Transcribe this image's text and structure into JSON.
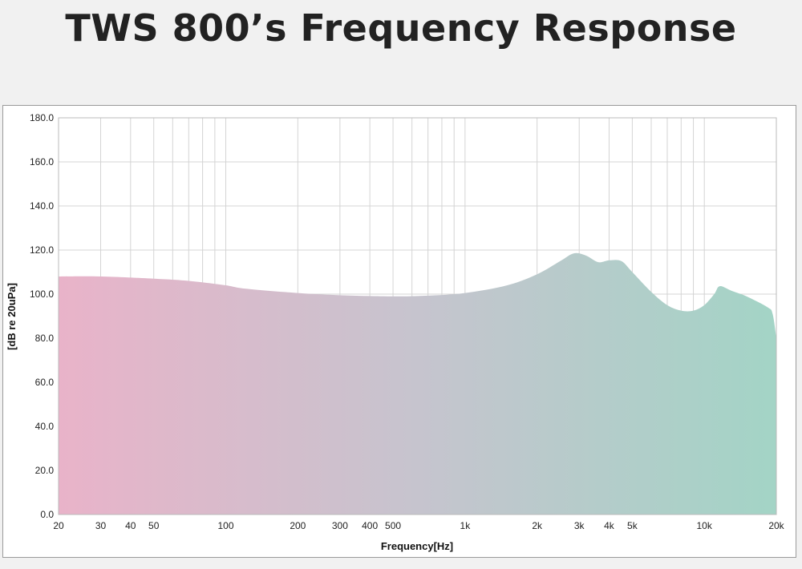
{
  "title": "TWS 800’s Frequency Response",
  "chart_data": {
    "type": "area",
    "title": "TWS 800’s Frequency Response",
    "xlabel": "Frequency[Hz]",
    "ylabel": "[dB re 20uPa]",
    "xscale": "log",
    "xlim": [
      20,
      20000
    ],
    "ylim": [
      0,
      180
    ],
    "grid": true,
    "yticks": [
      0,
      20,
      40,
      60,
      80,
      100,
      120,
      140,
      160,
      180
    ],
    "ytick_labels": [
      "0.0",
      "20.0",
      "40.0",
      "60.0",
      "80.0",
      "100.0",
      "120.0",
      "140.0",
      "160.0",
      "180.0"
    ],
    "xticks": [
      20,
      30,
      40,
      50,
      100,
      200,
      300,
      400,
      500,
      1000,
      2000,
      3000,
      4000,
      5000,
      10000,
      20000
    ],
    "xtick_labels": [
      "20",
      "30",
      "40",
      "50",
      "100",
      "200",
      "300",
      "400",
      "500",
      "1k",
      "2k",
      "3k",
      "4k",
      "5k",
      "10k",
      "20k"
    ],
    "x": [
      20,
      30,
      50,
      70,
      100,
      120,
      200,
      300,
      500,
      700,
      1000,
      1500,
      2000,
      2500,
      2850,
      3200,
      3600,
      4000,
      4500,
      5000,
      6000,
      7000,
      8000,
      9000,
      10000,
      11000,
      11600,
      13000,
      15000,
      18400,
      19300,
      20000
    ],
    "y": [
      108,
      108,
      107,
      106,
      104,
      102.5,
      100.5,
      99.5,
      99,
      99.3,
      100.5,
      104,
      109,
      115,
      118.5,
      117.5,
      114.5,
      115.3,
      115,
      110,
      101,
      95,
      92.5,
      92.5,
      95,
      100,
      103.6,
      101.5,
      99,
      94,
      91,
      80
    ],
    "colors": {
      "low": "#e9b3c9",
      "mid": "#c6c4ce",
      "high": "#a3d4c6"
    }
  }
}
